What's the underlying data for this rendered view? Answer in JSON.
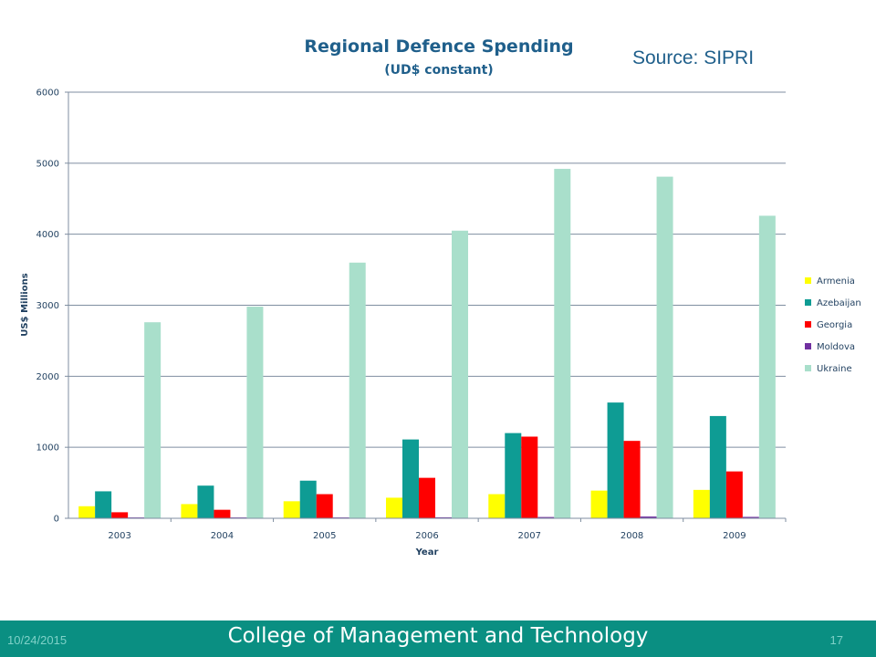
{
  "chart_data": {
    "type": "bar",
    "title": "Regional Defence Spending",
    "subtitle": "(UD$ constant)",
    "xlabel": "Year",
    "ylabel": "US$ Millions",
    "categories": [
      "2003",
      "2004",
      "2005",
      "2006",
      "2007",
      "2008",
      "2009"
    ],
    "ylim": [
      0,
      6000
    ],
    "yticks": [
      0,
      1000,
      2000,
      3000,
      4000,
      5000,
      6000
    ],
    "grid": true,
    "legend_position": "right",
    "series": [
      {
        "name": "Armenia",
        "color": "#FFFF00",
        "values": [
          170,
          200,
          240,
          290,
          340,
          390,
          400
        ]
      },
      {
        "name": "Azebaijan",
        "color": "#0E9C94",
        "values": [
          380,
          460,
          530,
          1110,
          1200,
          1630,
          1440
        ]
      },
      {
        "name": "Georgia",
        "color": "#FF0000",
        "values": [
          85,
          120,
          340,
          570,
          1150,
          1090,
          660
        ]
      },
      {
        "name": "Moldova",
        "color": "#7030A0",
        "values": [
          12,
          12,
          12,
          14,
          18,
          25,
          20
        ]
      },
      {
        "name": "Ukraine",
        "color": "#A9DFCB",
        "values": [
          2760,
          2980,
          3600,
          4050,
          4920,
          4810,
          4260
        ]
      }
    ]
  },
  "source_label": "Source: SIPRI",
  "footer": {
    "date": "10/24/2015",
    "title": "College of Management and Technology",
    "page": "17"
  }
}
